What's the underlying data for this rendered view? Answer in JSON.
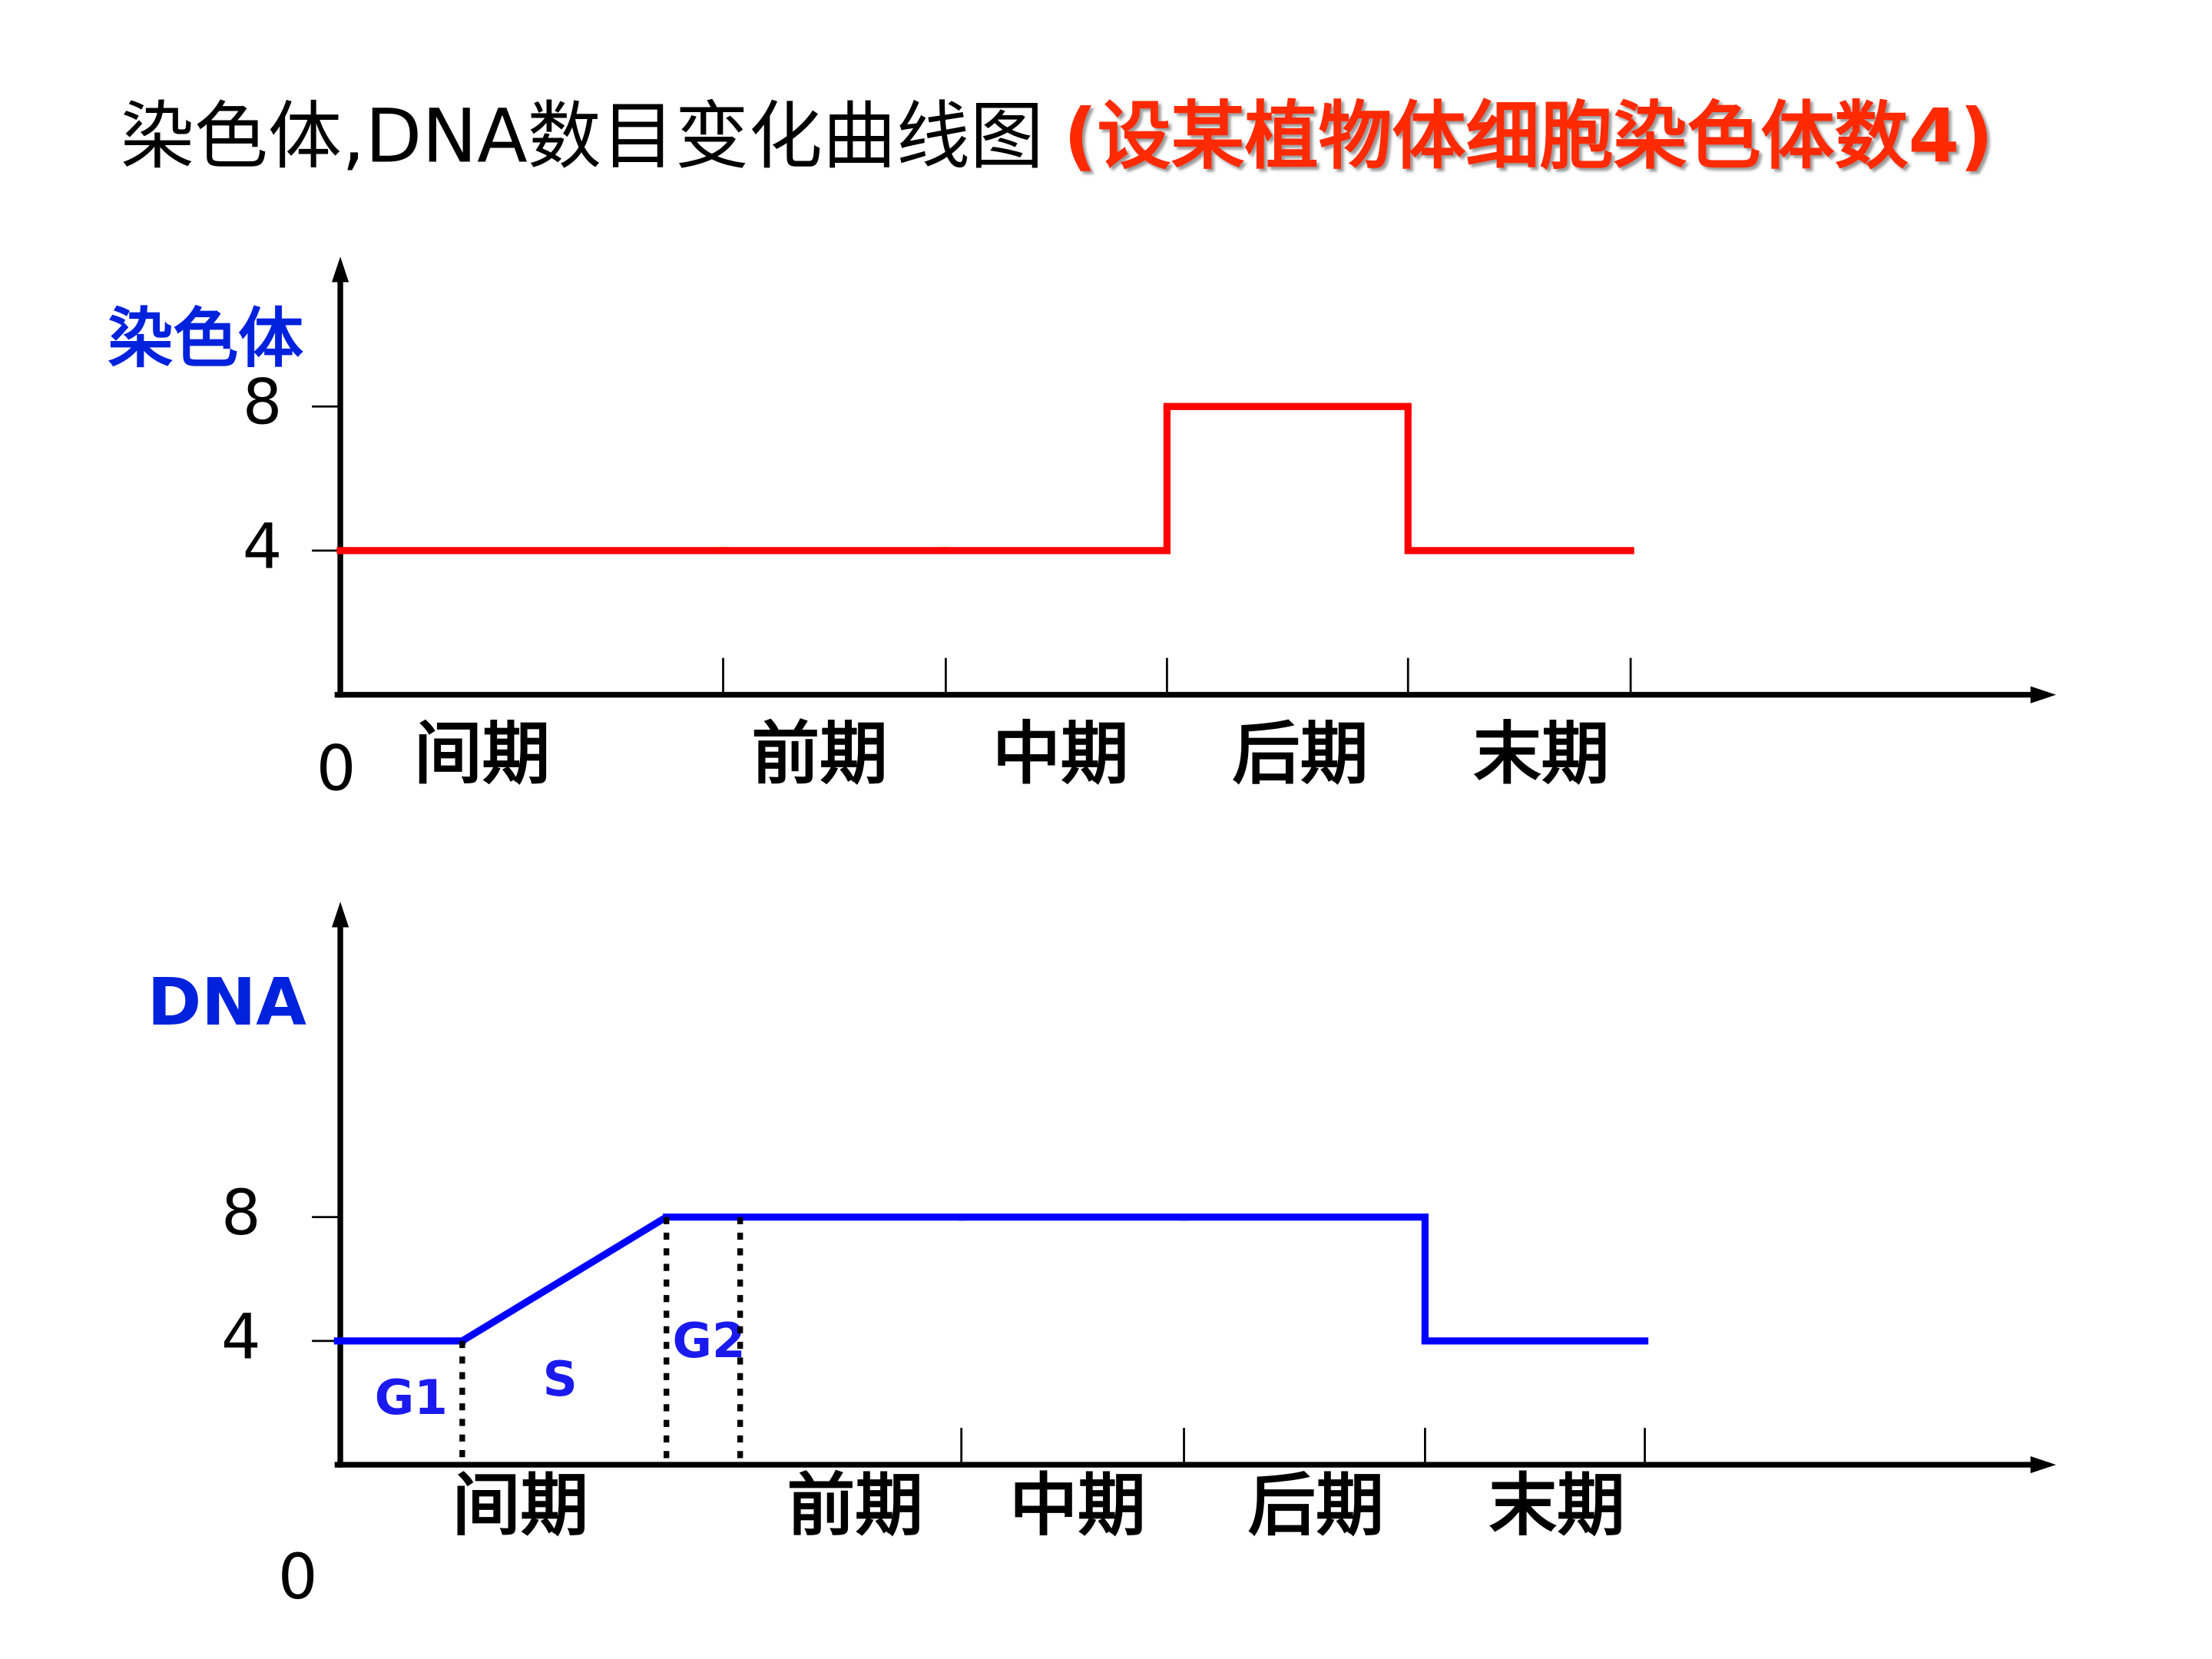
{
  "chart_data": [
    {
      "type": "step",
      "title": "染色体,DNA数目变化曲线图",
      "subtitle": "(设某植物体细胞染色体数4)",
      "y_label": "染色体",
      "categories": [
        "间期",
        "前期",
        "中期",
        "后期",
        "末期"
      ],
      "series": [
        {
          "name": "染色体",
          "color": "#ff0000",
          "values": [
            4,
            4,
            4,
            8,
            4
          ]
        }
      ],
      "ylim": [
        0,
        12
      ],
      "yticks": [
        0,
        4,
        8
      ]
    },
    {
      "type": "step",
      "y_label": "DNA",
      "interphase_label": "间期",
      "categories": [
        "G1",
        "S",
        "G2",
        "前期",
        "中期",
        "后期",
        "末期"
      ],
      "ramp_categories": [
        "S"
      ],
      "series": [
        {
          "name": "DNA",
          "color": "#0000ff",
          "values": [
            4,
            8,
            8,
            8,
            8,
            8,
            4
          ]
        }
      ],
      "ylim": [
        0,
        18
      ],
      "yticks": [
        0,
        4,
        8
      ]
    }
  ]
}
